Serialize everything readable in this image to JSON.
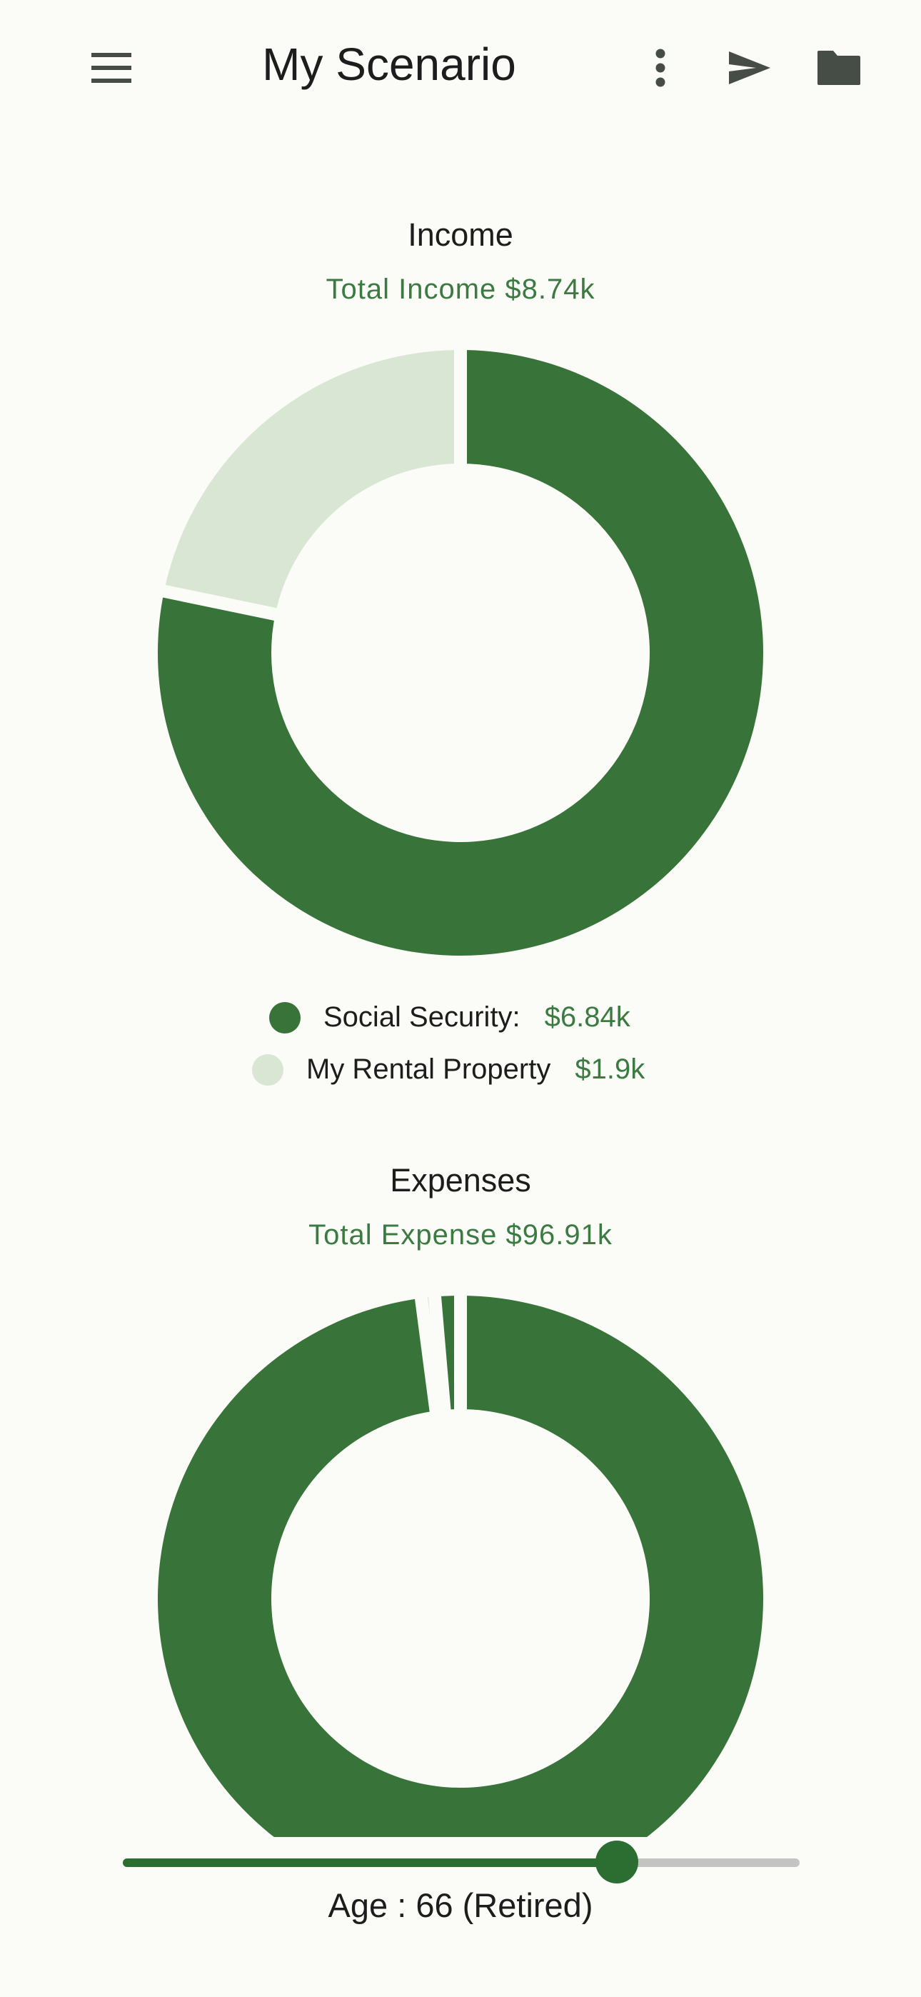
{
  "app_bar": {
    "title": "My Scenario",
    "icons": [
      "menu-icon",
      "more-vert-icon",
      "send-icon",
      "folder-icon"
    ],
    "icon_color": "#464d46"
  },
  "colors": {
    "dark_green": "#387339",
    "light_green": "#d9e6d3",
    "accent_text": "#3b7a40",
    "background": "#fbfcf7",
    "slider_track": "#c4c4c4"
  },
  "income": {
    "title": "Income",
    "total_label": "Total Income $8.74k",
    "legend": [
      {
        "label": "Social Security:",
        "value": "$6.84k",
        "color": "#387339"
      },
      {
        "label": "My Rental Property",
        "value": "$1.9k",
        "color": "#d9e6d3"
      }
    ]
  },
  "expenses": {
    "title": "Expenses",
    "total_label": "Total Expense $96.91k"
  },
  "slider": {
    "age_label": "Age : 66 (Retired)",
    "fraction": 0.73
  },
  "chart_data": [
    {
      "type": "pie",
      "title": "Income",
      "subtitle": "Total Income $8.74k",
      "categories": [
        "Social Security:",
        "My Rental Property"
      ],
      "values": [
        6.84,
        1.9
      ],
      "colors": [
        "#387339",
        "#d9e6d3"
      ],
      "donut": true
    },
    {
      "type": "pie",
      "title": "Expenses",
      "subtitle": "Total Expense $96.91k",
      "values": [
        94.9,
        0.7,
        1.31
      ],
      "colors": [
        "#387339",
        "#d9e6d3",
        "#387339"
      ],
      "donut": true
    }
  ]
}
